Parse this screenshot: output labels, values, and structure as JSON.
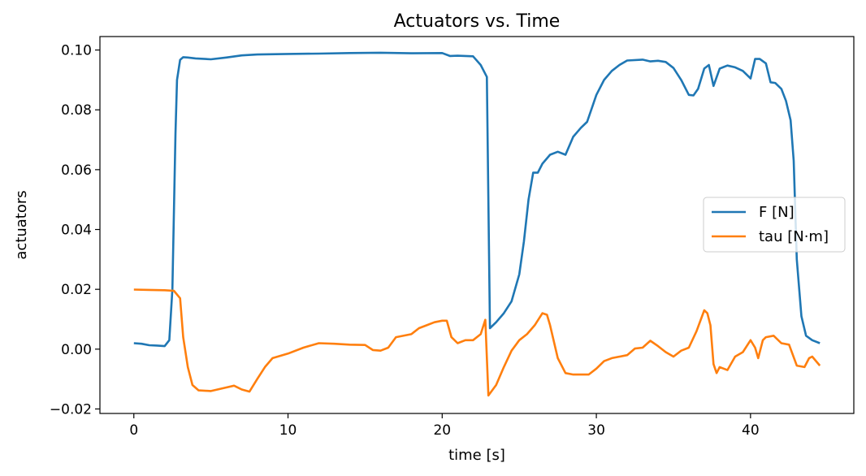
{
  "chart_data": {
    "type": "line",
    "title": "Actuators vs. Time",
    "xlabel": "time [s]",
    "ylabel": "actuators",
    "xlim": [
      -2.2,
      46.7
    ],
    "ylim": [
      -0.0215,
      0.1045
    ],
    "x_ticks": [
      0,
      10,
      20,
      30,
      40
    ],
    "x_tick_labels": [
      "0",
      "10",
      "20",
      "30",
      "40"
    ],
    "y_ticks": [
      -0.02,
      0.0,
      0.02,
      0.04,
      0.06,
      0.08,
      0.1
    ],
    "y_tick_labels": [
      "−0.02",
      "0.00",
      "0.02",
      "0.04",
      "0.06",
      "0.08",
      "0.10"
    ],
    "grid": false,
    "legend_position": "center-right",
    "series": [
      {
        "name": "F [N]",
        "color": "#1f77b4",
        "x": [
          0,
          0.5,
          1,
          1.5,
          2,
          2.3,
          2.5,
          2.7,
          2.8,
          3,
          3.2,
          3.5,
          4,
          5,
          6,
          7,
          8,
          10,
          12,
          14,
          16,
          18,
          20,
          20.5,
          21,
          21.5,
          22,
          22.5,
          22.9,
          23.1,
          23.5,
          24,
          24.5,
          25,
          25.3,
          25.6,
          25.9,
          26.2,
          26.5,
          27,
          27.5,
          28,
          28.5,
          29,
          29.4,
          29.8,
          30,
          30.5,
          31,
          31.5,
          32,
          33,
          33.5,
          34,
          34.5,
          35,
          35.5,
          36,
          36.3,
          36.6,
          37,
          37.3,
          37.6,
          38,
          38.5,
          39,
          39.5,
          40,
          40.3,
          40.6,
          41,
          41.3,
          41.6,
          42,
          42.3,
          42.6,
          42.8,
          43,
          43.3,
          43.6,
          44,
          44.5
        ],
        "values": [
          0.002,
          0.0018,
          0.0013,
          0.0012,
          0.001,
          0.003,
          0.02,
          0.072,
          0.09,
          0.0967,
          0.0976,
          0.0975,
          0.0972,
          0.0969,
          0.0975,
          0.0982,
          0.0985,
          0.0987,
          0.0988,
          0.099,
          0.0991,
          0.0989,
          0.099,
          0.098,
          0.0981,
          0.098,
          0.0979,
          0.095,
          0.091,
          0.007,
          0.009,
          0.012,
          0.016,
          0.025,
          0.036,
          0.05,
          0.059,
          0.059,
          0.062,
          0.065,
          0.066,
          0.065,
          0.071,
          0.074,
          0.076,
          0.082,
          0.085,
          0.09,
          0.093,
          0.095,
          0.0965,
          0.0968,
          0.0962,
          0.0964,
          0.096,
          0.094,
          0.09,
          0.085,
          0.0848,
          0.087,
          0.0938,
          0.095,
          0.088,
          0.0938,
          0.0948,
          0.0942,
          0.093,
          0.0905,
          0.097,
          0.097,
          0.0955,
          0.0892,
          0.089,
          0.087,
          0.083,
          0.0765,
          0.063,
          0.03,
          0.011,
          0.0045,
          0.003,
          0.002
        ],
        "marker": "none"
      },
      {
        "name": "tau [N·m]",
        "color": "#ff7f0e",
        "x": [
          0,
          1,
          2,
          2.6,
          3,
          3.2,
          3.5,
          3.8,
          4.2,
          5,
          6,
          6.5,
          7,
          7.5,
          8,
          8.5,
          9,
          10,
          11,
          12,
          13,
          14,
          15,
          15.5,
          16,
          16.5,
          17,
          18,
          18.5,
          19,
          19.5,
          20,
          20.3,
          20.6,
          21,
          21.5,
          22,
          22.5,
          22.8,
          23,
          23.5,
          24,
          24.5,
          25,
          25.5,
          26,
          26.5,
          26.8,
          27,
          27.5,
          28,
          28.5,
          29,
          29.5,
          30,
          30.5,
          31,
          32,
          32.5,
          33,
          33.5,
          34,
          34.5,
          35,
          35.5,
          36,
          36.5,
          37,
          37.2,
          37.4,
          37.6,
          37.8,
          38,
          38.5,
          39,
          39.5,
          40,
          40.3,
          40.5,
          40.8,
          41,
          41.5,
          42,
          42.5,
          43,
          43.5,
          43.8,
          44,
          44.5
        ],
        "values": [
          0.0199,
          0.0198,
          0.0197,
          0.0195,
          0.017,
          0.004,
          -0.006,
          -0.012,
          -0.0138,
          -0.014,
          -0.0128,
          -0.0122,
          -0.0135,
          -0.0142,
          -0.01,
          -0.006,
          -0.003,
          -0.0015,
          0.0005,
          0.002,
          0.0018,
          0.0015,
          0.0014,
          -0.0003,
          -0.0005,
          0.0005,
          0.004,
          0.005,
          0.007,
          0.008,
          0.009,
          0.0095,
          0.0095,
          0.004,
          0.002,
          0.003,
          0.003,
          0.005,
          0.0098,
          -0.0155,
          -0.012,
          -0.006,
          -0.0005,
          0.003,
          0.005,
          0.008,
          0.012,
          0.0115,
          0.008,
          -0.003,
          -0.008,
          -0.0085,
          -0.0085,
          -0.0085,
          -0.0065,
          -0.004,
          -0.003,
          -0.002,
          0.0002,
          0.0005,
          0.0028,
          0.001,
          -0.001,
          -0.0025,
          -0.0005,
          0.0005,
          0.006,
          0.013,
          0.012,
          0.008,
          -0.005,
          -0.008,
          -0.006,
          -0.007,
          -0.0025,
          -0.001,
          0.003,
          0.0005,
          -0.003,
          0.003,
          0.004,
          0.0045,
          0.002,
          0.0015,
          -0.0055,
          -0.006,
          -0.003,
          -0.0025,
          -0.0055
        ]
      }
    ]
  }
}
